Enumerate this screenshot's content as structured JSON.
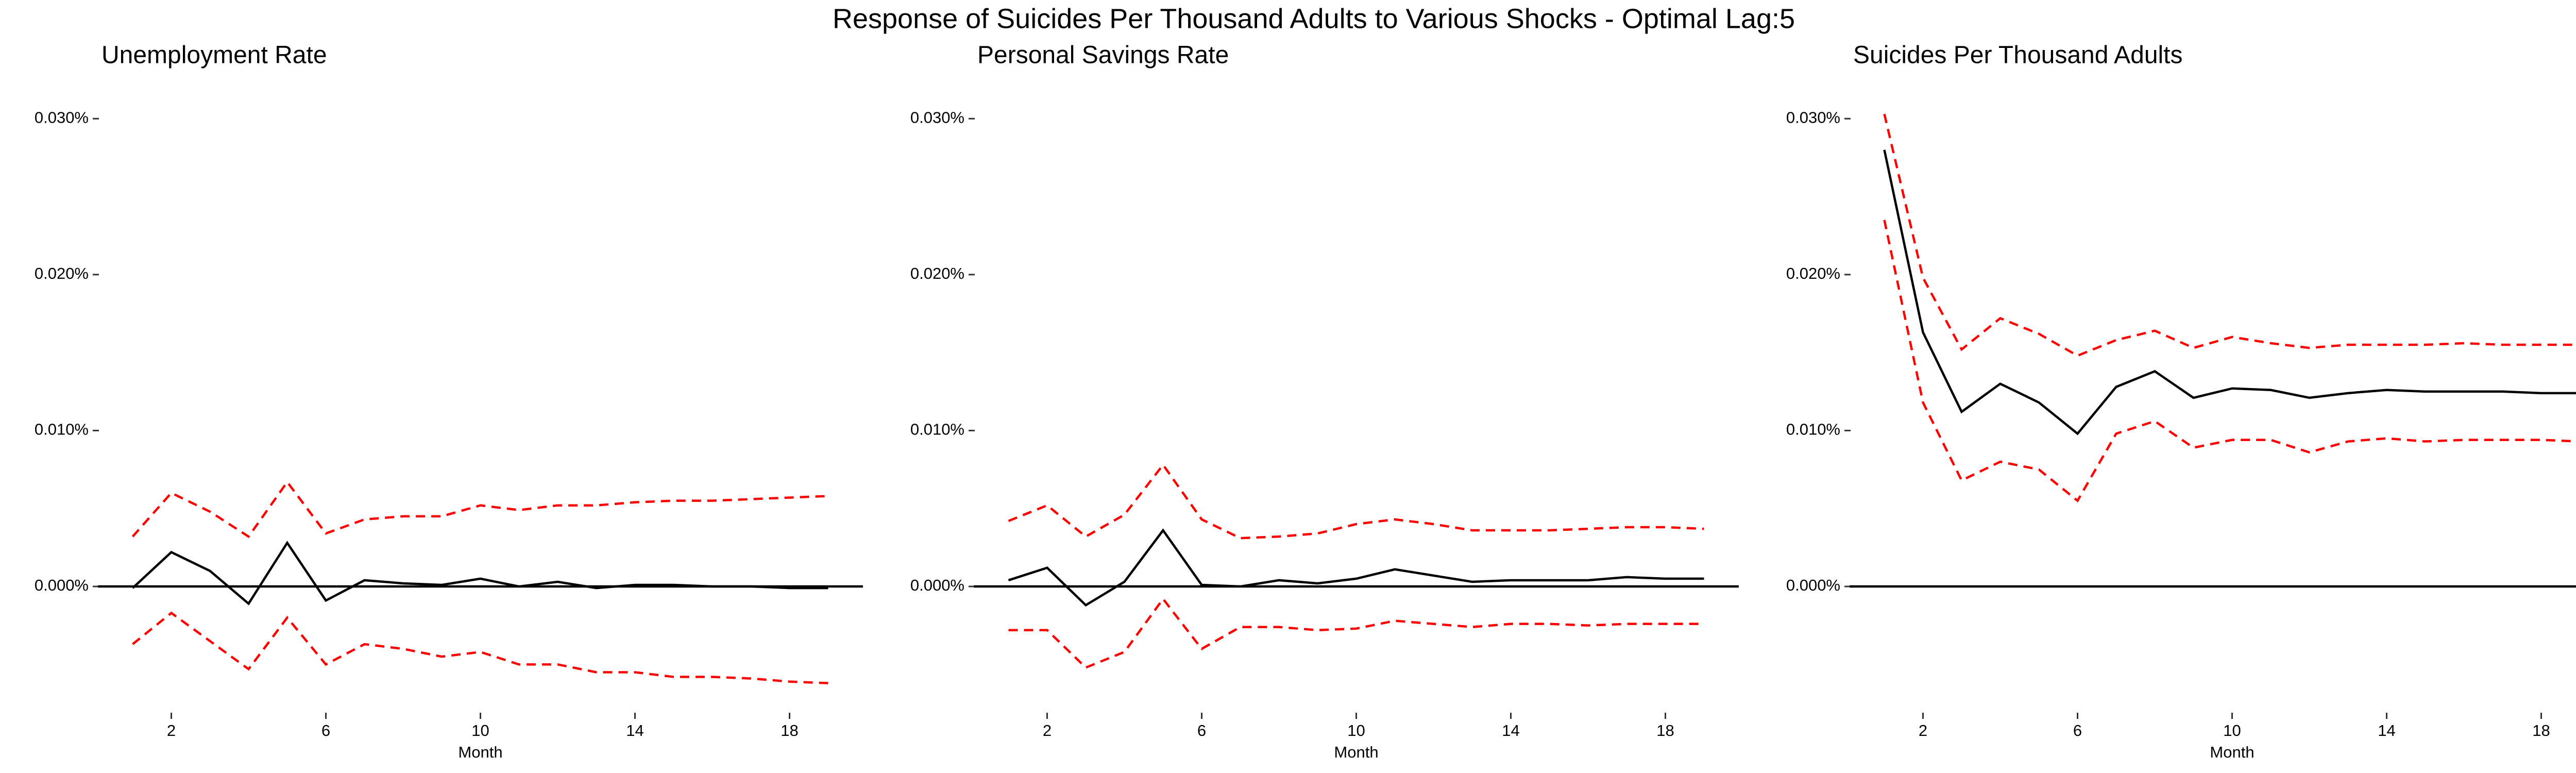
{
  "title": "Response of Suicides Per Thousand Adults to Various Shocks - Optimal Lag:5",
  "chart_data": [
    {
      "type": "line",
      "title": "Unemployment Rate",
      "xlabel": "Month",
      "x": [
        1,
        2,
        3,
        4,
        5,
        6,
        7,
        8,
        9,
        10,
        11,
        12,
        13,
        14,
        15,
        16,
        17,
        18,
        19
      ],
      "xlim": [
        0.1,
        19.9
      ],
      "xticks": [
        2,
        6,
        10,
        14,
        18
      ],
      "ylim": [
        -0.0075,
        0.031
      ],
      "yticks": [
        {
          "value": 0,
          "label": "0.000%"
        },
        {
          "value": 0.01,
          "label": "0.010%"
        },
        {
          "value": 0.02,
          "label": "0.020%"
        },
        {
          "value": 0.03,
          "label": "0.030%"
        }
      ],
      "hline": 0,
      "grid": false,
      "series": [
        {
          "color": "#ff0000",
          "linestyle": "dashed",
          "values": [
            0.0032,
            0.006,
            0.0048,
            0.0032,
            0.0067,
            0.0034,
            0.0043,
            0.0045,
            0.0045,
            0.0052,
            0.0049,
            0.0052,
            0.0052,
            0.0054,
            0.0055,
            0.0055,
            0.0056,
            0.0057,
            0.0058
          ]
        },
        {
          "color": "#000000",
          "linestyle": "solid",
          "values": [
            -0.0001,
            0.0022,
            0.001,
            -0.0011,
            0.0028,
            -0.0009,
            0.0004,
            0.0002,
            0.0001,
            0.0005,
            0,
            0.0003,
            -0.0001,
            0.0001,
            0.0001,
            0,
            0,
            -0.0001,
            -0.0001
          ]
        },
        {
          "color": "#ff0000",
          "linestyle": "dashed",
          "values": [
            -0.0037,
            -0.0017,
            -0.0035,
            -0.0053,
            -0.002,
            -0.005,
            -0.0037,
            -0.004,
            -0.0045,
            -0.0042,
            -0.005,
            -0.005,
            -0.0055,
            -0.0055,
            -0.0058,
            -0.0058,
            -0.0059,
            -0.0061,
            -0.0062
          ]
        }
      ]
    },
    {
      "type": "line",
      "title": "Personal Savings Rate",
      "xlabel": "Month",
      "x": [
        1,
        2,
        3,
        4,
        5,
        6,
        7,
        8,
        9,
        10,
        11,
        12,
        13,
        14,
        15,
        16,
        17,
        18,
        19
      ],
      "xlim": [
        0.1,
        19.9
      ],
      "xticks": [
        2,
        6,
        10,
        14,
        18
      ],
      "ylim": [
        -0.0075,
        0.031
      ],
      "yticks": [
        {
          "value": 0,
          "label": "0.000%"
        },
        {
          "value": 0.01,
          "label": "0.010%"
        },
        {
          "value": 0.02,
          "label": "0.020%"
        },
        {
          "value": 0.03,
          "label": "0.030%"
        }
      ],
      "hline": 0,
      "grid": false,
      "series": [
        {
          "color": "#ff0000",
          "linestyle": "dashed",
          "values": [
            0.0042,
            0.0052,
            0.0032,
            0.0046,
            0.0078,
            0.0043,
            0.0031,
            0.0032,
            0.0034,
            0.004,
            0.0043,
            0.004,
            0.0036,
            0.0036,
            0.0036,
            0.0037,
            0.0038,
            0.0038,
            0.0037
          ]
        },
        {
          "color": "#000000",
          "linestyle": "solid",
          "values": [
            0.0004,
            0.0012,
            -0.0012,
            0.0003,
            0.0036,
            0.0001,
            0,
            0.0004,
            0.0002,
            0.0005,
            0.0011,
            0.0007,
            0.0003,
            0.0004,
            0.0004,
            0.0004,
            0.0006,
            0.0005,
            0.0005
          ]
        },
        {
          "color": "#ff0000",
          "linestyle": "dashed",
          "values": [
            -0.0028,
            -0.0028,
            -0.0052,
            -0.0042,
            -0.0008,
            -0.004,
            -0.0026,
            -0.0026,
            -0.0028,
            -0.0027,
            -0.0022,
            -0.0024,
            -0.0026,
            -0.0024,
            -0.0024,
            -0.0025,
            -0.0024,
            -0.0024,
            -0.0024
          ]
        }
      ]
    },
    {
      "type": "line",
      "title": "Suicides Per Thousand Adults",
      "xlabel": "Month",
      "x": [
        1,
        2,
        3,
        4,
        5,
        6,
        7,
        8,
        9,
        10,
        11,
        12,
        13,
        14,
        15,
        16,
        17,
        18,
        19
      ],
      "xlim": [
        0.1,
        19.9
      ],
      "xticks": [
        2,
        6,
        10,
        14,
        18
      ],
      "ylim": [
        -0.0075,
        0.031
      ],
      "yticks": [
        {
          "value": 0,
          "label": "0.000%"
        },
        {
          "value": 0.01,
          "label": "0.010%"
        },
        {
          "value": 0.02,
          "label": "0.020%"
        },
        {
          "value": 0.03,
          "label": "0.030%"
        }
      ],
      "hline": 0,
      "grid": false,
      "series": [
        {
          "color": "#ff0000",
          "linestyle": "dashed",
          "values": [
            0.0303,
            0.0198,
            0.0152,
            0.0172,
            0.0162,
            0.0148,
            0.0158,
            0.0164,
            0.0153,
            0.016,
            0.0156,
            0.0153,
            0.0155,
            0.0155,
            0.0155,
            0.0156,
            0.0155,
            0.0155,
            0.0155
          ]
        },
        {
          "color": "#000000",
          "linestyle": "solid",
          "values": [
            0.028,
            0.0163,
            0.0112,
            0.013,
            0.0118,
            0.0098,
            0.0128,
            0.0138,
            0.0121,
            0.0127,
            0.0126,
            0.0121,
            0.0124,
            0.0126,
            0.0125,
            0.0125,
            0.0125,
            0.0124,
            0.0124
          ]
        },
        {
          "color": "#ff0000",
          "linestyle": "dashed",
          "values": [
            0.0235,
            0.0118,
            0.0068,
            0.008,
            0.0075,
            0.0055,
            0.0098,
            0.0106,
            0.0089,
            0.0094,
            0.0094,
            0.0086,
            0.0093,
            0.0095,
            0.0093,
            0.0094,
            0.0094,
            0.0094,
            0.0093
          ]
        }
      ]
    }
  ]
}
